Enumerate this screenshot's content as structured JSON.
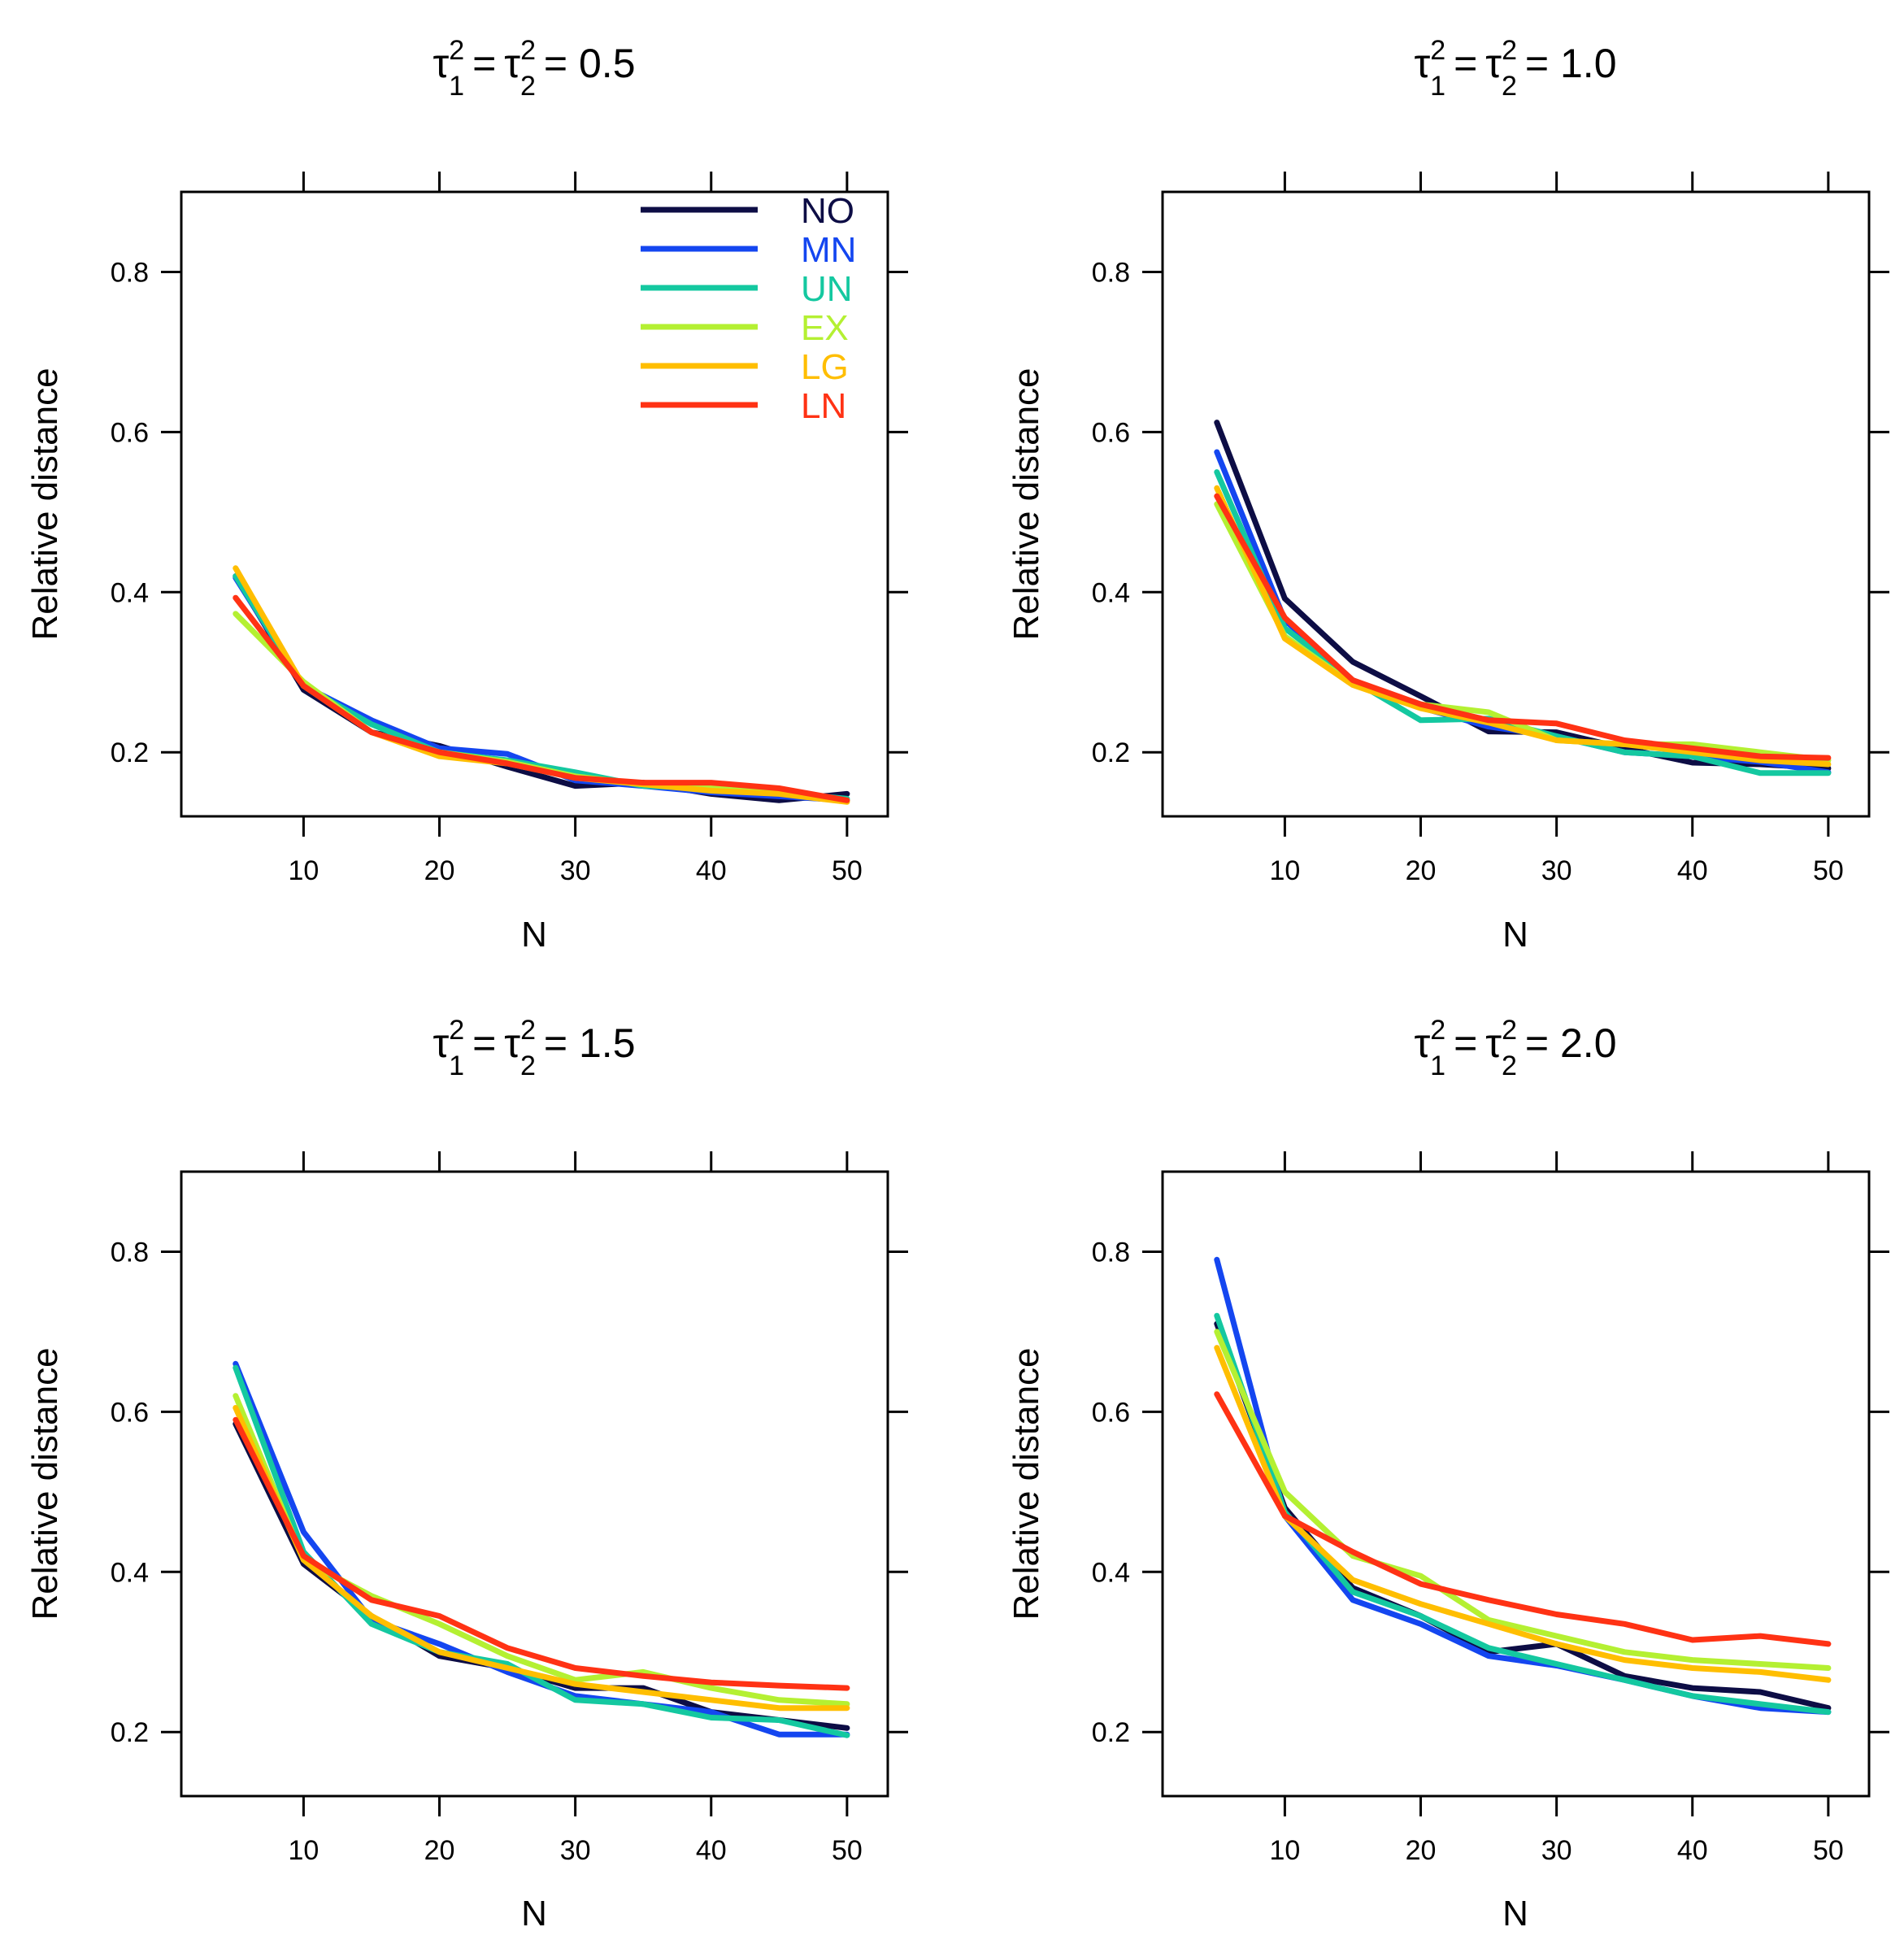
{
  "colors": {
    "NO": "#0d0d45",
    "MN": "#1446f0",
    "UN": "#14c8a0",
    "EX": "#b4f032",
    "LG": "#ffbe00",
    "LN": "#ff3214"
  },
  "chart_data": [
    {
      "type": "line",
      "title": {
        "symbol": "τ",
        "sub1": "1",
        "sub2": "2",
        "sup": "2",
        "value": "= 0.5"
      },
      "xlabel": "N",
      "ylabel": "Relative distance",
      "xlim": [
        1,
        53
      ],
      "ylim": [
        0.12,
        0.9
      ],
      "xticks": [
        10,
        20,
        30,
        40,
        50
      ],
      "yticks": [
        0.2,
        0.4,
        0.6,
        0.8
      ],
      "ytick_labels": [
        "0.2",
        "0.4",
        "0.6",
        "0.8"
      ],
      "legend": true,
      "x": [
        5,
        10,
        15,
        20,
        25,
        30,
        35,
        40,
        45,
        50
      ],
      "series": [
        {
          "name": "NO",
          "values": [
            0.42,
            0.278,
            0.225,
            0.208,
            0.182,
            0.158,
            0.162,
            0.148,
            0.14,
            0.148
          ]
        },
        {
          "name": "MN",
          "values": [
            0.418,
            0.283,
            0.24,
            0.205,
            0.198,
            0.165,
            0.158,
            0.15,
            0.145,
            0.14
          ]
        },
        {
          "name": "UN",
          "values": [
            0.42,
            0.283,
            0.235,
            0.2,
            0.19,
            0.175,
            0.158,
            0.155,
            0.15,
            0.142
          ]
        },
        {
          "name": "EX",
          "values": [
            0.373,
            0.288,
            0.225,
            0.2,
            0.188,
            0.17,
            0.16,
            0.155,
            0.15,
            0.14
          ]
        },
        {
          "name": "LG",
          "values": [
            0.43,
            0.283,
            0.225,
            0.195,
            0.186,
            0.168,
            0.16,
            0.152,
            0.148,
            0.138
          ]
        },
        {
          "name": "LN",
          "values": [
            0.393,
            0.283,
            0.225,
            0.2,
            0.186,
            0.168,
            0.162,
            0.162,
            0.155,
            0.14
          ]
        }
      ]
    },
    {
      "type": "line",
      "title": {
        "symbol": "τ",
        "sub1": "1",
        "sub2": "2",
        "sup": "2",
        "value": "= 1.0"
      },
      "xlabel": "N",
      "ylabel": "Relative distance",
      "xlim": [
        1,
        53
      ],
      "ylim": [
        0.12,
        0.9
      ],
      "xticks": [
        10,
        20,
        30,
        40,
        50
      ],
      "yticks": [
        0.2,
        0.4,
        0.6,
        0.8
      ],
      "ytick_labels": [
        "0.2",
        "0.4",
        "0.6",
        "0.8"
      ],
      "legend": false,
      "x": [
        5,
        10,
        15,
        20,
        25,
        30,
        35,
        40,
        45,
        50
      ],
      "series": [
        {
          "name": "NO",
          "values": [
            0.612,
            0.392,
            0.313,
            0.27,
            0.226,
            0.225,
            0.205,
            0.187,
            0.185,
            0.18
          ]
        },
        {
          "name": "MN",
          "values": [
            0.575,
            0.365,
            0.29,
            0.256,
            0.232,
            0.22,
            0.2,
            0.195,
            0.188,
            0.175
          ]
        },
        {
          "name": "UN",
          "values": [
            0.55,
            0.355,
            0.29,
            0.24,
            0.242,
            0.22,
            0.2,
            0.195,
            0.174,
            0.174
          ]
        },
        {
          "name": "EX",
          "values": [
            0.51,
            0.345,
            0.285,
            0.26,
            0.25,
            0.215,
            0.21,
            0.21,
            0.2,
            0.19
          ]
        },
        {
          "name": "LG",
          "values": [
            0.53,
            0.342,
            0.284,
            0.255,
            0.237,
            0.215,
            0.21,
            0.2,
            0.19,
            0.185
          ]
        },
        {
          "name": "LN",
          "values": [
            0.52,
            0.368,
            0.29,
            0.26,
            0.24,
            0.236,
            0.215,
            0.205,
            0.195,
            0.193
          ]
        }
      ]
    },
    {
      "type": "line",
      "title": {
        "symbol": "τ",
        "sub1": "1",
        "sub2": "2",
        "sup": "2",
        "value": "= 1.5"
      },
      "xlabel": "N",
      "ylabel": "Relative distance",
      "xlim": [
        1,
        53
      ],
      "ylim": [
        0.12,
        0.9
      ],
      "xticks": [
        10,
        20,
        30,
        40,
        50
      ],
      "yticks": [
        0.2,
        0.4,
        0.6,
        0.8
      ],
      "ytick_labels": [
        "0.2",
        "0.4",
        "0.6",
        "0.8"
      ],
      "legend": false,
      "x": [
        5,
        10,
        15,
        20,
        25,
        30,
        35,
        40,
        45,
        50
      ],
      "series": [
        {
          "name": "NO",
          "values": [
            0.585,
            0.41,
            0.345,
            0.295,
            0.28,
            0.255,
            0.255,
            0.225,
            0.215,
            0.205
          ]
        },
        {
          "name": "MN",
          "values": [
            0.66,
            0.45,
            0.34,
            0.31,
            0.275,
            0.245,
            0.235,
            0.225,
            0.197,
            0.197
          ]
        },
        {
          "name": "UN",
          "values": [
            0.655,
            0.425,
            0.335,
            0.3,
            0.285,
            0.24,
            0.235,
            0.218,
            0.215,
            0.196
          ]
        },
        {
          "name": "EX",
          "values": [
            0.62,
            0.415,
            0.37,
            0.335,
            0.295,
            0.265,
            0.275,
            0.255,
            0.24,
            0.235
          ]
        },
        {
          "name": "LG",
          "values": [
            0.605,
            0.415,
            0.345,
            0.3,
            0.28,
            0.26,
            0.25,
            0.24,
            0.23,
            0.23
          ]
        },
        {
          "name": "LN",
          "values": [
            0.59,
            0.42,
            0.365,
            0.345,
            0.305,
            0.28,
            0.27,
            0.262,
            0.258,
            0.255
          ]
        }
      ]
    },
    {
      "type": "line",
      "title": {
        "symbol": "τ",
        "sub1": "1",
        "sub2": "2",
        "sup": "2",
        "value": "= 2.0"
      },
      "xlabel": "N",
      "ylabel": "Relative distance",
      "xlim": [
        1,
        53
      ],
      "ylim": [
        0.12,
        0.9
      ],
      "xticks": [
        10,
        20,
        30,
        40,
        50
      ],
      "yticks": [
        0.2,
        0.4,
        0.6,
        0.8
      ],
      "ytick_labels": [
        "0.2",
        "0.4",
        "0.6",
        "0.8"
      ],
      "legend": false,
      "x": [
        5,
        10,
        15,
        20,
        25,
        30,
        35,
        40,
        45,
        50
      ],
      "series": [
        {
          "name": "NO",
          "values": [
            0.71,
            0.48,
            0.38,
            0.345,
            0.3,
            0.31,
            0.27,
            0.255,
            0.25,
            0.23
          ]
        },
        {
          "name": "MN",
          "values": [
            0.79,
            0.47,
            0.365,
            0.335,
            0.295,
            0.283,
            0.265,
            0.245,
            0.23,
            0.225
          ]
        },
        {
          "name": "UN",
          "values": [
            0.72,
            0.475,
            0.375,
            0.345,
            0.305,
            0.285,
            0.265,
            0.245,
            0.235,
            0.225
          ]
        },
        {
          "name": "EX",
          "values": [
            0.7,
            0.5,
            0.42,
            0.395,
            0.34,
            0.32,
            0.3,
            0.29,
            0.285,
            0.28
          ]
        },
        {
          "name": "LG",
          "values": [
            0.68,
            0.47,
            0.39,
            0.36,
            0.335,
            0.31,
            0.29,
            0.28,
            0.275,
            0.265
          ]
        },
        {
          "name": "LN",
          "values": [
            0.622,
            0.47,
            0.425,
            0.385,
            0.365,
            0.347,
            0.335,
            0.315,
            0.32,
            0.31
          ]
        }
      ]
    }
  ]
}
